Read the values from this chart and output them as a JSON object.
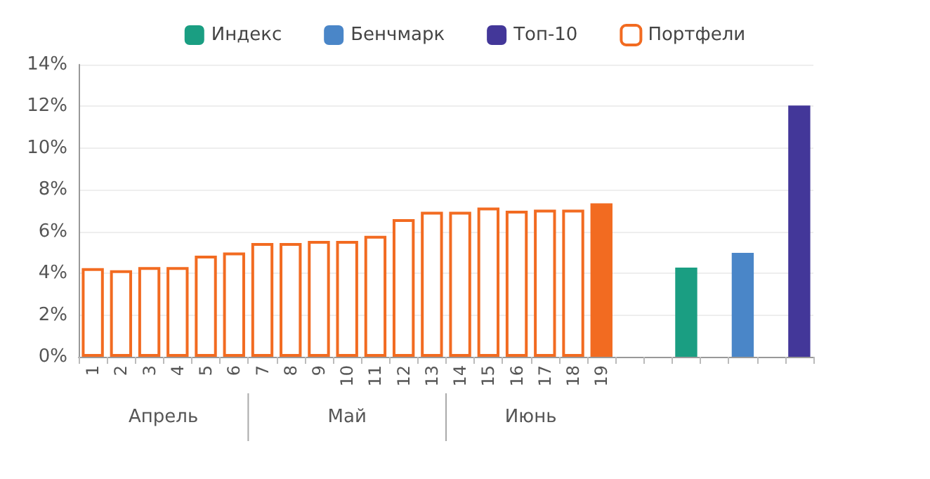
{
  "chart_data": {
    "type": "bar",
    "categories": [
      "1",
      "2",
      "3",
      "4",
      "5",
      "6",
      "7",
      "8",
      "9",
      "10",
      "11",
      "12",
      "13",
      "14",
      "15",
      "16",
      "17",
      "18",
      "19",
      null,
      null,
      null,
      null,
      null,
      null,
      null
    ],
    "series": [
      {
        "name": "Индекс",
        "color": "#1a9e82",
        "values": [
          null,
          null,
          null,
          null,
          null,
          null,
          null,
          null,
          null,
          null,
          null,
          null,
          null,
          null,
          null,
          null,
          null,
          null,
          null,
          null,
          null,
          4.27,
          null,
          null,
          null,
          null
        ]
      },
      {
        "name": "Бенчмарк",
        "color": "#4a86c8",
        "values": [
          null,
          null,
          null,
          null,
          null,
          null,
          null,
          null,
          null,
          null,
          null,
          null,
          null,
          null,
          null,
          null,
          null,
          null,
          null,
          null,
          null,
          null,
          null,
          4.98,
          null,
          null
        ]
      },
      {
        "name": "Топ-10",
        "color": "#433799",
        "values": [
          null,
          null,
          null,
          null,
          null,
          null,
          null,
          null,
          null,
          null,
          null,
          null,
          null,
          null,
          null,
          null,
          null,
          null,
          null,
          null,
          null,
          null,
          null,
          null,
          null,
          12.04
        ]
      },
      {
        "name": "Портфели",
        "color": "#f26b21",
        "values": [
          4.25,
          4.15,
          4.3,
          4.3,
          4.85,
          5.0,
          5.45,
          5.45,
          5.55,
          5.55,
          5.8,
          6.6,
          6.95,
          6.95,
          7.15,
          7.0,
          7.05,
          7.05,
          7.35,
          null,
          null,
          null,
          null,
          null,
          null,
          null
        ]
      }
    ],
    "ylim": [
      0,
      14
    ],
    "yticks": [
      {
        "value": 0,
        "label": "0%"
      },
      {
        "value": 2,
        "label": "2%"
      },
      {
        "value": 4,
        "label": "4%"
      },
      {
        "value": 6,
        "label": "6%"
      },
      {
        "value": 8,
        "label": "8%"
      },
      {
        "value": 10,
        "label": "10%"
      },
      {
        "value": 12,
        "label": "12%"
      },
      {
        "value": 14,
        "label": "14%"
      }
    ],
    "grid": "y",
    "legend": "top",
    "annotations": [
      "Апрель",
      "Май",
      "Июнь"
    ]
  }
}
